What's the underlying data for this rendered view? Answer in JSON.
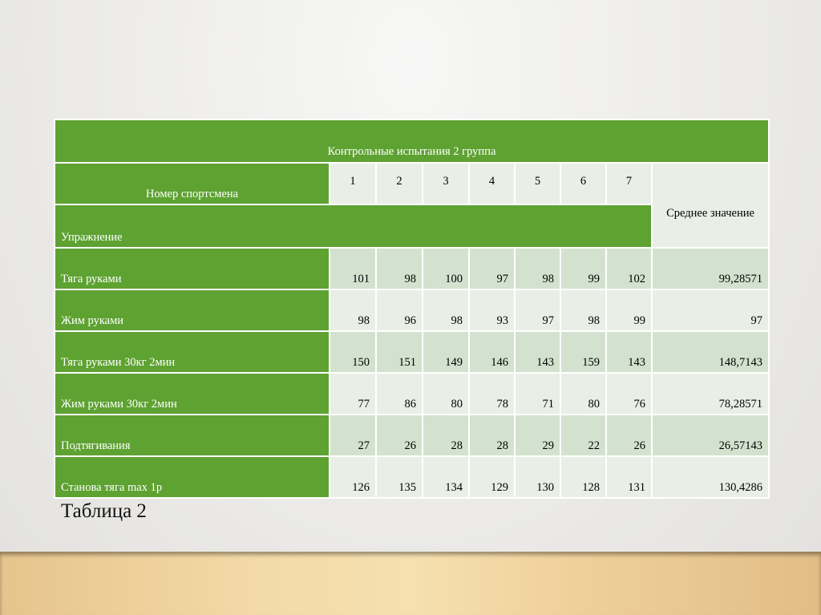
{
  "table": {
    "title": "Контрольные испытания 2 группа",
    "athlete_header": "Номер спортсмена",
    "athlete_numbers": [
      "1",
      "2",
      "3",
      "4",
      "5",
      "6",
      "7"
    ],
    "exercise_header": "Упражнение",
    "average_header": "Среднее значение",
    "rows": [
      {
        "name": "Тяга руками",
        "values": [
          "101",
          "98",
          "100",
          "97",
          "98",
          "99",
          "102"
        ],
        "avg": "99,28571"
      },
      {
        "name": "Жим руками",
        "values": [
          "98",
          "96",
          "98",
          "93",
          "97",
          "98",
          "99"
        ],
        "avg": "97"
      },
      {
        "name": "Тяга руками 30кг 2мин",
        "values": [
          "150",
          "151",
          "149",
          "146",
          "143",
          "159",
          "143"
        ],
        "avg": "148,7143"
      },
      {
        "name": "Жим руками 30кг 2мин",
        "values": [
          "77",
          "86",
          "80",
          "78",
          "71",
          "80",
          "76"
        ],
        "avg": "78,28571"
      },
      {
        "name": "Подтягивания",
        "values": [
          "27",
          "26",
          "28",
          "28",
          "29",
          "22",
          "26"
        ],
        "avg": "26,57143"
      },
      {
        "name": "Станова тяга max 1р",
        "values": [
          "126",
          "135",
          "134",
          "129",
          "130",
          "128",
          "131"
        ],
        "avg": "130,4286"
      }
    ]
  },
  "caption": "Таблица 2",
  "colors": {
    "header_green": "#5ea232",
    "cell_dark": "#d3e2cf",
    "cell_light": "#e9efe7"
  }
}
